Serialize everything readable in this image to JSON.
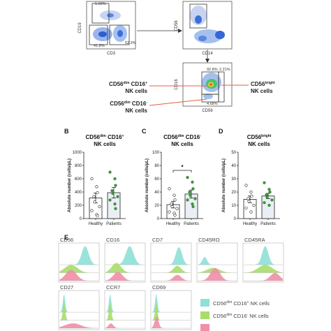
{
  "panel_letters": {
    "b": "B",
    "c": "C",
    "d": "D",
    "e": "E"
  },
  "gating": {
    "plot1": {
      "ylabel": "CD19",
      "xlabel": "CD3",
      "gate_top": "5.03%",
      "gate_left": "41.8%",
      "gate_right": "52.3%"
    },
    "plot2": {
      "ylabel": "CD56",
      "xlabel": "CD14"
    },
    "plot3": {
      "ylabel": "CD16",
      "xlabel": "CD56",
      "gate_tl": "92.8%",
      "gate_tr": "2.21%",
      "gate_bottom": "4.68%"
    },
    "callouts": {
      "left_top_a": "CD56",
      "left_top_sup": "dim",
      "left_top_b": " CD16",
      "left_top_sup2": "+",
      "left_top_line2": "NK cells",
      "left_bot_a": "CD56",
      "left_bot_sup": "dim",
      "left_bot_b": " CD16",
      "left_bot_sup2": "-",
      "left_bot_line2": "NK cells",
      "right_a": "CD56",
      "right_sup": "bright",
      "right_line2": "NK cells"
    }
  },
  "chart_data": [
    {
      "type": "bar",
      "panel": "B",
      "title_main": "CD56",
      "title_sup": "dim",
      "title_rest": " CD16",
      "title_sup2": "+",
      "title_line2": "NK cells",
      "ylabel": "Absolute number (cells/µL)",
      "categories": [
        "Healthy",
        "Patients"
      ],
      "values": [
        310,
        390
      ],
      "errors": [
        75,
        80
      ],
      "points": [
        [
          600,
          480,
          390,
          330,
          250,
          180,
          120,
          60,
          40
        ],
        [
          700,
          600,
          500,
          420,
          380,
          330,
          280,
          220,
          150
        ]
      ],
      "ylim": [
        0,
        1000
      ],
      "yticks": [
        "0",
        "200",
        "400",
        "600",
        "800",
        "1000"
      ],
      "yticks_v": [
        0,
        200,
        400,
        600,
        800,
        1000
      ]
    },
    {
      "type": "bar",
      "panel": "C",
      "title_main": "CD56",
      "title_sup": "dim",
      "title_rest": " CD16",
      "title_sup2": "-",
      "title_line2": "NK cells",
      "ylabel": "Absolute number (cells/µL)",
      "categories": [
        "Healthy",
        "Patients"
      ],
      "values": [
        21,
        37
      ],
      "errors": [
        5,
        6
      ],
      "points": [
        [
          45,
          35,
          28,
          22,
          18,
          15,
          10,
          8,
          5
        ],
        [
          62,
          55,
          45,
          40,
          35,
          30,
          28,
          22,
          18
        ]
      ],
      "ylim": [
        0,
        100
      ],
      "yticks": [
        "0",
        "20",
        "40",
        "60",
        "80",
        "100"
      ],
      "yticks_v": [
        0,
        20,
        40,
        60,
        80,
        100
      ],
      "significance": "*"
    },
    {
      "type": "bar",
      "panel": "D",
      "title_main": "CD56",
      "title_sup": "bright",
      "title_rest": "",
      "title_sup2": "",
      "title_line2": "NK cells",
      "ylabel": "Absolute number (cells/µL)",
      "categories": [
        "Healthy",
        "Patients"
      ],
      "values": [
        14.5,
        17
      ],
      "errors": [
        2.5,
        2
      ],
      "points": [
        [
          25,
          20,
          17,
          15,
          13,
          10,
          8,
          5
        ],
        [
          27,
          22,
          20,
          18,
          16,
          14,
          12,
          10
        ]
      ],
      "ylim": [
        0,
        50
      ],
      "yticks": [
        "0",
        "10",
        "20",
        "30",
        "40",
        "50"
      ],
      "yticks_v": [
        0,
        10,
        20,
        30,
        40,
        50
      ]
    }
  ],
  "histograms": {
    "markers": [
      "CD56",
      "CD16",
      "CD7",
      "CD45RO",
      "CD45RA",
      "CD27",
      "CCR7",
      "CD69"
    ],
    "colors": {
      "cd16pos": "#8fe0d6",
      "cd16neg": "#a9dc6a",
      "bright": "#f08fa6"
    }
  },
  "legend": {
    "item1_a": "CD56",
    "item1_sup": "dim",
    "item1_b": " CD16",
    "item1_sup2": "+",
    "item1_c": " NK cells",
    "item2_a": "CD56",
    "item2_sup": "dim",
    "item2_b": " CD16",
    "item2_sup2": "-",
    "item2_c": " NK cells"
  }
}
